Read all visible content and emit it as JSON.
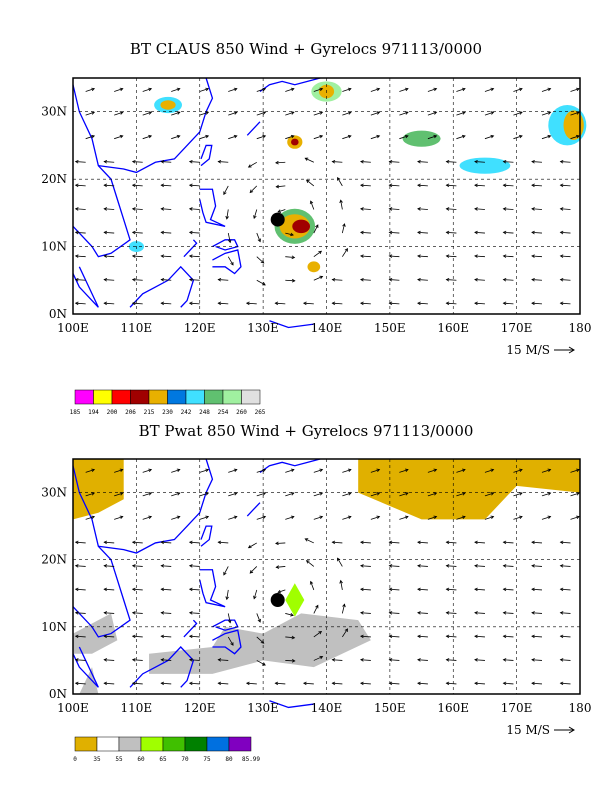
{
  "panel1": {
    "title": "BT CLAUS 850 Wind + Gyrelocs 971113/0000",
    "lat_labels": [
      "0N",
      "10N",
      "20N",
      "30N"
    ],
    "lon_labels": [
      "100E",
      "110E",
      "120E",
      "130E",
      "140E",
      "150E",
      "160E",
      "170E",
      "180"
    ],
    "ref_vector_label": "15 M/S",
    "legend": {
      "labels": [
        "185",
        "194",
        "200",
        "206",
        "215",
        "230",
        "242",
        "248",
        "254",
        "260",
        "265"
      ],
      "colors": [
        "#ff00ff",
        "#ffff00",
        "#ff0000",
        "#a00000",
        "#e8b000",
        "#0078e0",
        "#40e0ff",
        "#60c070",
        "#a0f0a0",
        "#e0e0e0"
      ]
    }
  },
  "panel2": {
    "title": "BT Pwat 850 Wind + Gyrelocs 971113/0000",
    "lat_labels": [
      "0N",
      "10N",
      "20N",
      "30N"
    ],
    "lon_labels": [
      "100E",
      "110E",
      "120E",
      "130E",
      "140E",
      "150E",
      "160E",
      "170E",
      "180"
    ],
    "ref_vector_label": "15 M/S",
    "legend": {
      "labels": [
        "0",
        "35",
        "55",
        "60",
        "65",
        "70",
        "75",
        "80",
        "85.99"
      ],
      "colors": [
        "#e0b000",
        "#ffffff",
        "#c0c0c0",
        "#a0ff00",
        "#40c000",
        "#008000",
        "#0070e0",
        "#8000c0"
      ]
    }
  }
}
